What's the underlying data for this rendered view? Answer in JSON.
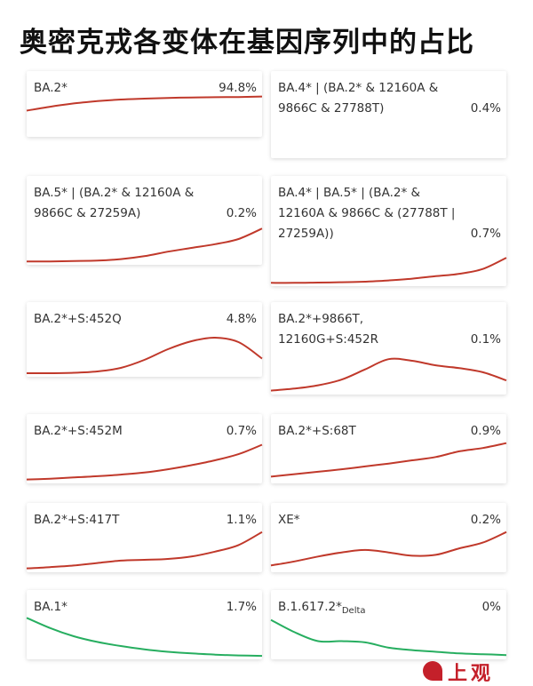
{
  "title": "奥密克戎各变体在基因序列中的占比",
  "footer": {
    "text": "上观"
  },
  "colors": {
    "rising": "#c0392b",
    "declining": "#27ae60"
  },
  "chart_data": [
    {
      "type": "line",
      "name_lines": [
        "BA.2*"
      ],
      "percent": "94.8%",
      "color": "#c0392b",
      "x": [
        0,
        1,
        2,
        3,
        4,
        5,
        6,
        7,
        8,
        9,
        10
      ],
      "values": [
        0.25,
        0.42,
        0.56,
        0.66,
        0.73,
        0.77,
        0.8,
        0.82,
        0.83,
        0.84,
        0.86
      ],
      "ylim": [
        0,
        1
      ]
    },
    {
      "type": "line",
      "name_lines": [
        "BA.4* | (BA.2* & 12160A &",
        "9866C & 27788T)"
      ],
      "percent": "0.4%",
      "color": "#c0392b",
      "x": [
        0,
        1,
        2,
        3,
        4,
        5,
        6,
        7,
        8,
        9,
        10
      ],
      "values": [
        0.02,
        0.02,
        0.02,
        0.03,
        0.04,
        0.06,
        0.09,
        0.13,
        0.17,
        0.28,
        0.85
      ],
      "ylim": [
        0,
        1
      ]
    },
    {
      "type": "line",
      "name_lines": [
        "BA.5* | (BA.2* & 12160A &",
        "9866C & 27259A)"
      ],
      "percent": "0.2%",
      "color": "#c0392b",
      "x": [
        0,
        1,
        2,
        3,
        4,
        5,
        6,
        7,
        8,
        9,
        10
      ],
      "values": [
        0.02,
        0.02,
        0.03,
        0.04,
        0.08,
        0.16,
        0.28,
        0.38,
        0.48,
        0.62,
        0.9
      ],
      "ylim": [
        0,
        1
      ]
    },
    {
      "type": "line",
      "name_lines": [
        "BA.4* | BA.5* | (BA.2* &",
        "12160A & 9866C & (27788T |",
        "27259A))"
      ],
      "percent": "0.7%",
      "color": "#c0392b",
      "x": [
        0,
        1,
        2,
        3,
        4,
        5,
        6,
        7,
        8,
        9,
        10
      ],
      "values": [
        0.02,
        0.02,
        0.03,
        0.04,
        0.06,
        0.1,
        0.16,
        0.24,
        0.32,
        0.48,
        0.85
      ],
      "ylim": [
        0,
        1
      ]
    },
    {
      "type": "line",
      "name_lines": [
        "BA.2*+S:452Q"
      ],
      "percent": "4.8%",
      "color": "#c0392b",
      "x": [
        0,
        1,
        2,
        3,
        4,
        5,
        6,
        7,
        8,
        9,
        10
      ],
      "values": [
        0.02,
        0.02,
        0.03,
        0.06,
        0.14,
        0.32,
        0.56,
        0.74,
        0.82,
        0.72,
        0.35
      ],
      "ylim": [
        0,
        1
      ]
    },
    {
      "type": "line",
      "name_lines": [
        "BA.2*+9866T,",
        "12160G+S:452R"
      ],
      "percent": "0.1%",
      "color": "#c0392b",
      "x": [
        0,
        1,
        2,
        3,
        4,
        5,
        6,
        7,
        8,
        9,
        10
      ],
      "values": [
        0.03,
        0.08,
        0.16,
        0.3,
        0.55,
        0.8,
        0.76,
        0.65,
        0.58,
        0.48,
        0.28
      ],
      "ylim": [
        0,
        1
      ]
    },
    {
      "type": "line",
      "name_lines": [
        "BA.2*+S:452M"
      ],
      "percent": "0.7%",
      "color": "#c0392b",
      "x": [
        0,
        1,
        2,
        3,
        4,
        5,
        6,
        7,
        8,
        9,
        10
      ],
      "values": [
        0.03,
        0.05,
        0.08,
        0.11,
        0.15,
        0.2,
        0.28,
        0.38,
        0.5,
        0.65,
        0.88
      ],
      "ylim": [
        0,
        1
      ]
    },
    {
      "type": "line",
      "name_lines": [
        "BA.2*+S:68T"
      ],
      "percent": "0.9%",
      "color": "#c0392b",
      "x": [
        0,
        1,
        2,
        3,
        4,
        5,
        6,
        7,
        8,
        9,
        10
      ],
      "values": [
        0.1,
        0.16,
        0.22,
        0.28,
        0.35,
        0.42,
        0.5,
        0.58,
        0.72,
        0.8,
        0.92
      ],
      "ylim": [
        0,
        1
      ]
    },
    {
      "type": "line",
      "name_lines": [
        "BA.2*+S:417T"
      ],
      "percent": "1.1%",
      "color": "#c0392b",
      "x": [
        0,
        1,
        2,
        3,
        4,
        5,
        6,
        7,
        8,
        9,
        10
      ],
      "values": [
        0.03,
        0.06,
        0.1,
        0.16,
        0.22,
        0.24,
        0.26,
        0.32,
        0.44,
        0.6,
        0.92
      ],
      "ylim": [
        0,
        1
      ]
    },
    {
      "type": "line",
      "name_lines": [
        "XE*"
      ],
      "percent": "0.2%",
      "color": "#c0392b",
      "x": [
        0,
        1,
        2,
        3,
        4,
        5,
        6,
        7,
        8,
        9,
        10
      ],
      "values": [
        0.1,
        0.2,
        0.32,
        0.42,
        0.48,
        0.42,
        0.34,
        0.36,
        0.52,
        0.66,
        0.92
      ],
      "ylim": [
        0,
        1
      ]
    },
    {
      "type": "line",
      "name_lines": [
        "BA.1*"
      ],
      "percent": "1.7%",
      "color": "#27ae60",
      "x": [
        0,
        1,
        2,
        3,
        4,
        5,
        6,
        7,
        8,
        9,
        10
      ],
      "values": [
        0.95,
        0.7,
        0.5,
        0.36,
        0.26,
        0.18,
        0.12,
        0.08,
        0.05,
        0.03,
        0.02
      ],
      "ylim": [
        0,
        1
      ]
    },
    {
      "type": "line",
      "name_lines": [
        "B.1.617.2*"
      ],
      "name_sub": "Delta",
      "percent": "0%",
      "color": "#27ae60",
      "x": [
        0,
        1,
        2,
        3,
        4,
        5,
        6,
        7,
        8,
        9,
        10
      ],
      "values": [
        0.9,
        0.6,
        0.38,
        0.38,
        0.35,
        0.22,
        0.16,
        0.12,
        0.08,
        0.06,
        0.04
      ],
      "ylim": [
        0,
        1
      ]
    }
  ]
}
